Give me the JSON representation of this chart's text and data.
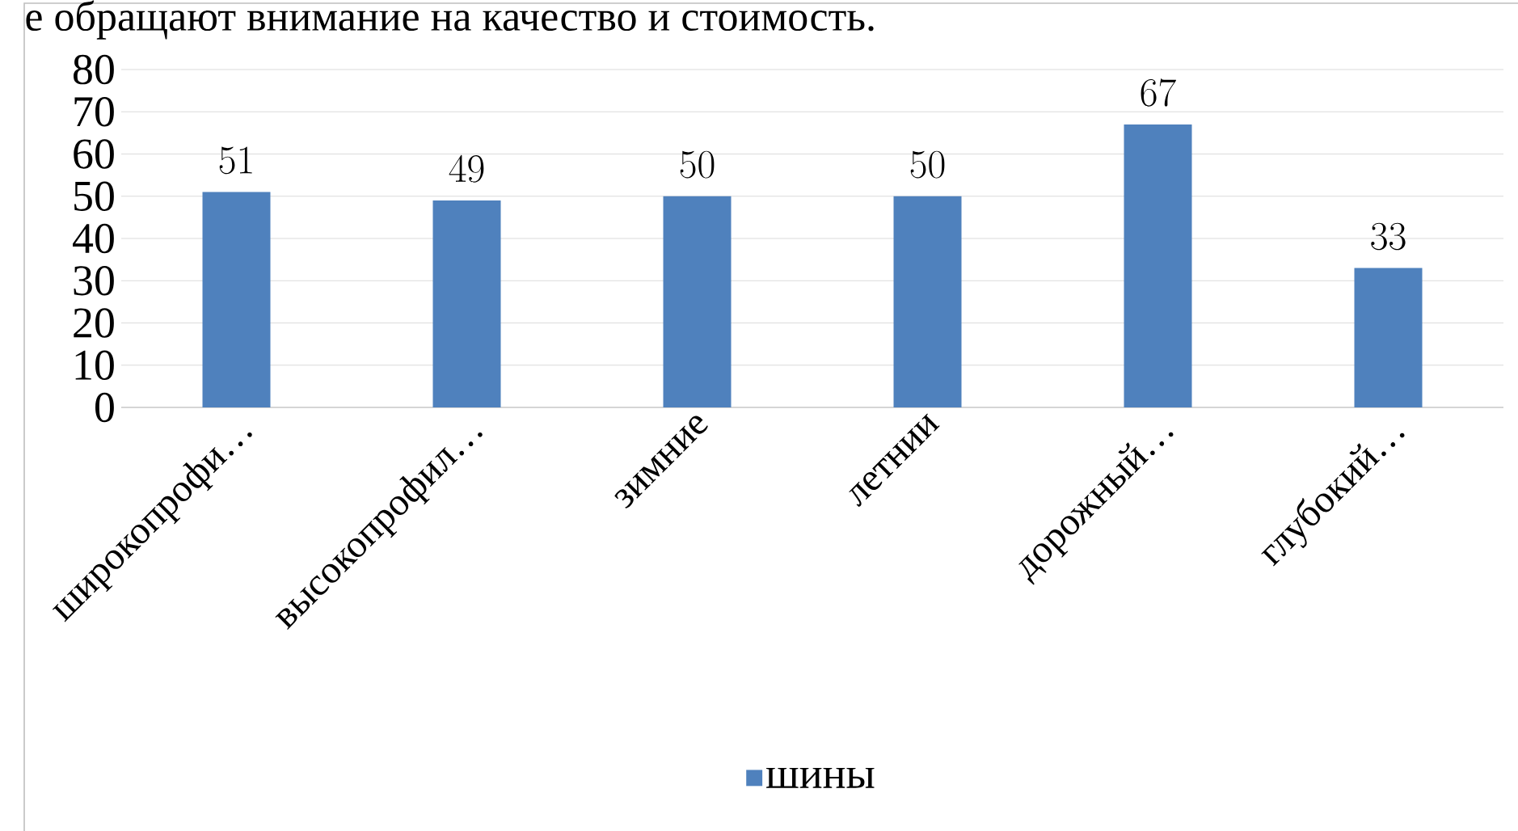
{
  "chart_data": {
    "type": "bar",
    "categories": [
      "широкопрофи…",
      "высокопрофил…",
      "зимние",
      "летнии",
      "дорожный…",
      "глубокий…"
    ],
    "series": [
      {
        "name": "шины",
        "color": "#4f81bd",
        "values": [
          51,
          49,
          50,
          50,
          67,
          33
        ]
      }
    ],
    "ylim": [
      0,
      80
    ],
    "yticks": [
      0,
      10,
      20,
      30,
      40,
      50,
      60,
      70,
      80
    ],
    "grid": "y",
    "legend": "bottom",
    "data_labels": true,
    "annotations": [
      "е обращают внимание на качество и стоимость."
    ]
  }
}
